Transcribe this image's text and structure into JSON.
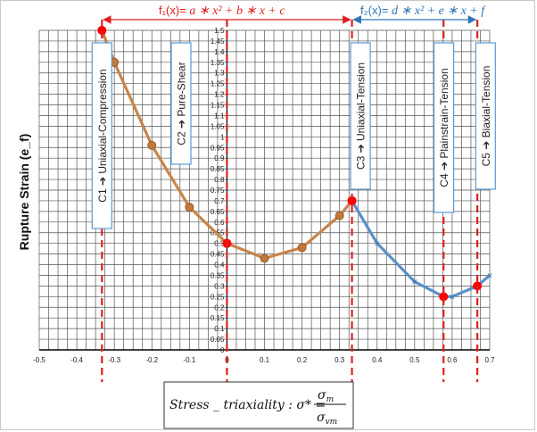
{
  "chart_data": {
    "type": "line",
    "ylabel": "Rupture Strain (e_f)",
    "xlim": [
      -0.5,
      0.7
    ],
    "ylim": [
      0,
      1.5
    ],
    "x_ticks": [
      "-0.5",
      "-0.4",
      "-0.3",
      "-0.2",
      "-0.1",
      "0",
      "0.1",
      "0.2",
      "0.3",
      "0.4",
      "0.5",
      "0.6",
      "0.7"
    ],
    "y_ticks": [
      "0",
      "0.05",
      "0.1",
      "0.15",
      "0.2",
      "0.25",
      "0.3",
      "0.35",
      "0.4",
      "0.45",
      "0.5",
      "0.55",
      "0.6",
      "0.65",
      "0.7",
      "0.75",
      "0.8",
      "0.85",
      "0.9",
      "0.95",
      "1",
      "1.05",
      "1.1",
      "1.15",
      "1.2",
      "1.25",
      "1.3",
      "1.35",
      "1.4",
      "1.45",
      "1.5"
    ],
    "grid": true,
    "series": [
      {
        "color": "#c8844a",
        "x": [
          -0.333,
          -0.3,
          -0.2,
          -0.1,
          0.0,
          0.1,
          0.2,
          0.3,
          0.333
        ],
        "y": [
          1.5,
          1.35,
          0.96,
          0.67,
          0.5,
          0.43,
          0.48,
          0.63,
          0.7
        ]
      },
      {
        "color": "#5b8fc9",
        "x": [
          0.333,
          0.4,
          0.5,
          0.577,
          0.6,
          0.667,
          0.7
        ],
        "y": [
          0.7,
          0.5,
          0.32,
          0.25,
          0.25,
          0.3,
          0.35
        ]
      }
    ],
    "markers": {
      "x": [
        -0.333,
        0.0,
        0.333,
        0.577,
        0.667
      ],
      "y": [
        1.5,
        0.5,
        0.7,
        0.25,
        0.3
      ],
      "color": "#ff0000"
    },
    "dashed_lines_x": [
      -0.333,
      0.0,
      0.333,
      0.577,
      0.667
    ],
    "case_labels": [
      {
        "x": -0.333,
        "text": "C1 ➔ Uniaxial-Compression"
      },
      {
        "x": -0.1222,
        "text": "C2 ➔ Pure-Shear"
      },
      {
        "x": 0.3556,
        "text": "C3 ➔ Uniaxial-Tension"
      },
      {
        "x": 0.5778,
        "text": "C4 ➔ Plainstrain-Tension"
      },
      {
        "x": 0.6889,
        "text": "C5 ➔ Biaxial-Tension"
      }
    ],
    "formula1": {
      "prefix": "f₁(x)= ",
      "expr": "a ∗ x² + b ∗ x + c",
      "color": "#e02020"
    },
    "formula2": {
      "prefix": "f₂(x)= ",
      "expr": "d ∗ x² + e ∗ x + f",
      "color": "#2e75b6"
    },
    "stress_label": {
      "lhs": "Stress _ triaxiality : σ* =",
      "num": "σ",
      "num_sub": "m",
      "den": "σ",
      "den_sub": "vm"
    }
  }
}
